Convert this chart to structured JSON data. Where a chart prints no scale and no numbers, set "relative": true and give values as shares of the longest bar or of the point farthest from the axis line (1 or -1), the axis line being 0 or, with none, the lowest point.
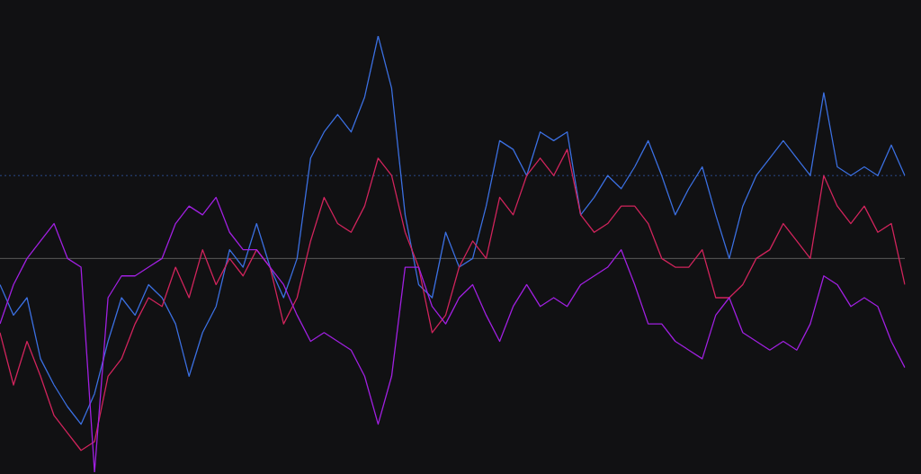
{
  "chart_data": {
    "type": "line",
    "relative": true,
    "categories": [
      null,
      null,
      null,
      null,
      null,
      null,
      null,
      null,
      null,
      null,
      null,
      null,
      null,
      null,
      null,
      null,
      null,
      null,
      null,
      null,
      null,
      null,
      null,
      null,
      null,
      null,
      null,
      null,
      null,
      null,
      null,
      null,
      null,
      null,
      null,
      null,
      null,
      null,
      null,
      null,
      null,
      null,
      null,
      null,
      null,
      null,
      null,
      null,
      null,
      null,
      null,
      null,
      null,
      null,
      null,
      null,
      null,
      null,
      null,
      null,
      null,
      null,
      null,
      null,
      null,
      null,
      null,
      null
    ],
    "series": [
      {
        "color": "#a020e0",
        "values": [
          0.34,
          0.43,
          0.49,
          0.53,
          0.57,
          0.49,
          0.47,
          0,
          0.4,
          0.45,
          0.45,
          0.47,
          0.49,
          0.57,
          0.61,
          0.59,
          0.63,
          0.55,
          0.51,
          0.51,
          0.47,
          0.43,
          0.36,
          0.3,
          0.32,
          0.3,
          0.28,
          0.22,
          0.11,
          0.22,
          0.47,
          0.47,
          0.38,
          0.34,
          0.4,
          0.43,
          0.36,
          0.3,
          0.38,
          0.43,
          0.38,
          0.4,
          0.38,
          0.43,
          0.45,
          0.47,
          0.51,
          0.43,
          0.34,
          0.34,
          0.3,
          0.28,
          0.26,
          0.36,
          0.4,
          0.32,
          0.3,
          0.28,
          0.3,
          0.28,
          0.34,
          0.45,
          0.43,
          0.38,
          0.4,
          0.38,
          0.3,
          0.24
        ]
      },
      {
        "color": "#d0245c",
        "values": [
          0.32,
          0.2,
          0.3,
          0.22,
          0.13,
          0.09,
          0.05,
          0.07,
          0.22,
          0.26,
          0.34,
          0.4,
          0.38,
          0.47,
          0.4,
          0.51,
          0.43,
          0.49,
          0.45,
          0.51,
          0.47,
          0.34,
          0.4,
          0.53,
          0.63,
          0.57,
          0.55,
          0.61,
          0.72,
          0.68,
          0.55,
          0.47,
          0.32,
          0.36,
          0.47,
          0.53,
          0.49,
          0.63,
          0.59,
          0.68,
          0.72,
          0.68,
          0.74,
          0.59,
          0.55,
          0.57,
          0.61,
          0.61,
          0.57,
          0.49,
          0.47,
          0.47,
          0.51,
          0.4,
          0.4,
          0.43,
          0.49,
          0.51,
          0.57,
          0.53,
          0.49,
          0.68,
          0.61,
          0.57,
          0.61,
          0.55,
          0.57,
          0.43
        ]
      },
      {
        "color": "#3b6fe0",
        "values": [
          0.43,
          0.36,
          0.4,
          0.26,
          0.2,
          0.15,
          0.11,
          0.18,
          0.3,
          0.4,
          0.36,
          0.43,
          0.4,
          0.34,
          0.22,
          0.32,
          0.38,
          0.51,
          0.47,
          0.57,
          0.47,
          0.4,
          0.49,
          0.72,
          0.78,
          0.82,
          0.78,
          0.86,
          1,
          0.88,
          0.59,
          0.43,
          0.4,
          0.55,
          0.47,
          0.49,
          0.61,
          0.76,
          0.74,
          0.68,
          0.78,
          0.76,
          0.78,
          0.59,
          0.63,
          0.68,
          0.65,
          0.7,
          0.76,
          0.68,
          0.59,
          0.65,
          0.7,
          0.59,
          0.49,
          0.61,
          0.68,
          0.72,
          0.76,
          0.72,
          0.68,
          0.87,
          0.7,
          0.68,
          0.7,
          0.68,
          0.75,
          0.68
        ]
      }
    ],
    "ref_lines": [
      {
        "axis": "y",
        "value": 0.68,
        "color": "#2a4a8a",
        "line_style": "dotted"
      },
      {
        "axis": "y",
        "value": 0.49,
        "color": "#5a5a5a",
        "line_style": "solid"
      }
    ]
  }
}
